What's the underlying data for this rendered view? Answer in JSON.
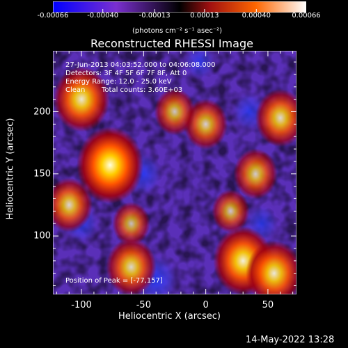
{
  "chart_data": {
    "type": "heatmap",
    "title": "Reconstructed RHESSI Image",
    "xlabel": "Heliocentric X (arcsec)",
    "ylabel": "Heliocentric Y (arcsec)",
    "xlim": [
      -123,
      73
    ],
    "ylim": [
      53,
      249
    ],
    "x_ticks": [
      "-100",
      "-50",
      "0",
      "50"
    ],
    "y_ticks": [
      "100",
      "150",
      "200"
    ],
    "x_tick_values": [
      -100,
      -50,
      0,
      50
    ],
    "y_tick_values": [
      100,
      150,
      200
    ],
    "colorbar": {
      "unit_label": "(photons cm⁻² s⁻¹ asec⁻²)",
      "ticks": [
        "-0.00066",
        "-0.00040",
        "-0.00013",
        "0.00013",
        "0.00040",
        "0.00066"
      ],
      "tick_values": [
        -0.00066,
        -0.0004,
        -0.00013,
        0.00013,
        0.0004,
        0.00066
      ],
      "range": [
        -0.00066,
        0.00066
      ],
      "colors": [
        "#0000ff",
        "#7a2fd0",
        "#000000",
        "#a01010",
        "#ff6600",
        "#ffffff"
      ]
    },
    "annotations": {
      "time_range": "27-Jun-2013 04:03:52.000 to 04:06:08.000",
      "detectors": "Detectors: 3F 4F 5F 6F 7F 8F, Att 0",
      "energy_range": "Energy Range: 12.0 - 25.0 keV",
      "clean": "Clean",
      "total_counts": "Total counts: 3.60E+03",
      "peak_position": "Position of Peak = [-77,157]"
    },
    "hotspots": [
      {
        "x": -77,
        "y": 157,
        "value": 0.00066
      },
      {
        "x": -100,
        "y": 210,
        "value": 0.0005
      },
      {
        "x": -110,
        "y": 125,
        "value": 0.00035
      },
      {
        "x": -60,
        "y": 75,
        "value": 0.0004
      },
      {
        "x": -60,
        "y": 110,
        "value": 0.0002
      },
      {
        "x": 30,
        "y": 80,
        "value": 0.00055
      },
      {
        "x": 55,
        "y": 70,
        "value": 0.0005
      },
      {
        "x": 60,
        "y": 195,
        "value": 0.0004
      },
      {
        "x": 0,
        "y": 190,
        "value": 0.0003
      },
      {
        "x": -25,
        "y": 200,
        "value": 0.00025
      },
      {
        "x": 40,
        "y": 150,
        "value": 0.0003
      },
      {
        "x": 20,
        "y": 120,
        "value": 0.0002
      }
    ],
    "coldspots": [
      {
        "x": -50,
        "y": 150,
        "value": -0.00025
      },
      {
        "x": -40,
        "y": 65,
        "value": -0.00035
      },
      {
        "x": -100,
        "y": 110,
        "value": -0.0002
      },
      {
        "x": 35,
        "y": 200,
        "value": -0.0002
      },
      {
        "x": 45,
        "y": 110,
        "value": -0.00018
      },
      {
        "x": -5,
        "y": 240,
        "value": -0.00015
      }
    ]
  },
  "footer": {
    "timestamp": "14-May-2022 13:28"
  }
}
